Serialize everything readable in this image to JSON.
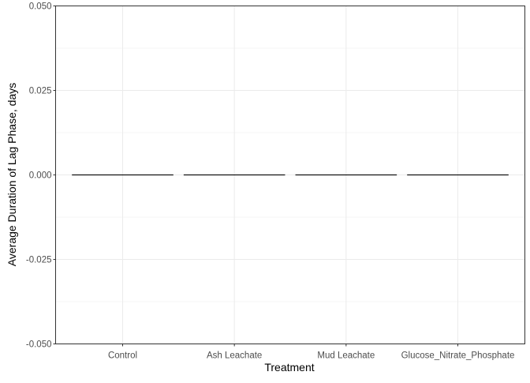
{
  "chart_data": {
    "type": "bar",
    "title": "",
    "xlabel": "Treatment",
    "ylabel": "Average Duration of Lag Phase, days",
    "categories": [
      "Control",
      "Ash Leachate",
      "Mud Leachate",
      "Glucose_Nitrate_Phosphate"
    ],
    "values": [
      0,
      0,
      0,
      0
    ],
    "ylim": [
      -0.05,
      0.05
    ],
    "yticks": [
      -0.05,
      -0.025,
      0,
      0.025,
      0.05
    ],
    "ytick_labels": [
      "-0.050",
      "-0.025",
      "0.000",
      "0.025",
      "0.050"
    ],
    "grid": true,
    "legend": "none"
  },
  "colors": {
    "background": "#ffffff",
    "panel_border": "#333333",
    "grid_major": "#ebebeb",
    "grid_minor": "#f5f5f5",
    "bar_outline": "#000000",
    "tick_label": "#4d4d4d",
    "axis_title": "#000000"
  }
}
